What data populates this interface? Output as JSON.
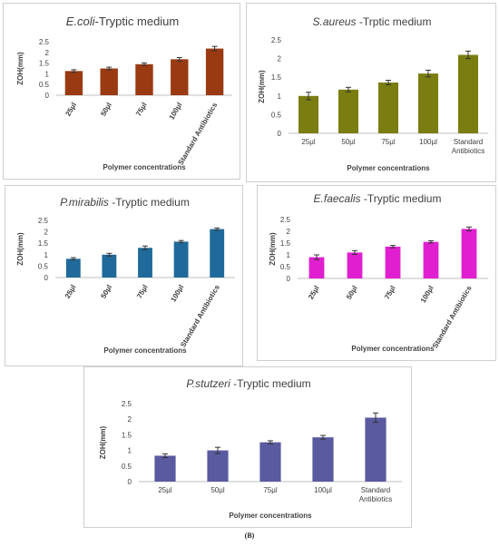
{
  "figure_label": "(B)",
  "chart_data": [
    {
      "type": "bar",
      "title_species": "E.coli",
      "title_rest": "-Tryptic medium",
      "categories": [
        "25µl",
        "50µl",
        "75µl",
        "100µl",
        "Standard Antibiotics"
      ],
      "values": [
        1.13,
        1.25,
        1.45,
        1.68,
        2.18
      ],
      "errors": [
        0.06,
        0.06,
        0.06,
        0.08,
        0.1
      ],
      "ylabel": "ZOH(mm)",
      "xlabel": "Polymer concentrations",
      "ylim": [
        0,
        2.5
      ],
      "yticks": [
        "0",
        "0.5",
        "1",
        "1.5",
        "2",
        "2.5"
      ],
      "color": "#9a3a12",
      "grid": false
    },
    {
      "type": "bar",
      "title_species": "S.aureus",
      "title_rest": " -Trptic medium",
      "categories": [
        "25µl",
        "50µl",
        "75µl",
        "100µl",
        "Standard Antibiotics"
      ],
      "values": [
        1.0,
        1.17,
        1.36,
        1.6,
        2.1
      ],
      "errors": [
        0.1,
        0.06,
        0.06,
        0.09,
        0.1
      ],
      "ylabel": "ZOH(mm)",
      "xlabel": "Polymer concentrations",
      "ylim": [
        0,
        2.5
      ],
      "yticks": [
        "0",
        "0.5",
        "1",
        "1.5",
        "2",
        "2.5"
      ],
      "color": "#7a7d10",
      "grid": false
    },
    {
      "type": "bar",
      "title_species": "P.mirabilis",
      "title_rest": " -Tryptic medium",
      "categories": [
        "25µl",
        "50µl",
        "75µl",
        "100µl",
        "Standard Antibiotics"
      ],
      "values": [
        0.82,
        1.0,
        1.3,
        1.57,
        2.12
      ],
      "errors": [
        0.05,
        0.06,
        0.08,
        0.05,
        0.05
      ],
      "ylabel": "ZOH(mm)",
      "xlabel": "Polymer concentrations",
      "ylim": [
        0,
        2.5
      ],
      "yticks": [
        "0",
        "0.5",
        "1",
        "1.5",
        "2",
        "2.5"
      ],
      "color": "#1f6a9a",
      "grid": false
    },
    {
      "type": "bar",
      "title_species": "E.faecalis",
      "title_rest": " -Tryptic medium",
      "categories": [
        "25µl",
        "50µl",
        "75µl",
        "100µl",
        "Standard Antibiotics"
      ],
      "values": [
        0.9,
        1.1,
        1.35,
        1.55,
        2.1
      ],
      "errors": [
        0.1,
        0.08,
        0.05,
        0.05,
        0.08
      ],
      "ylabel": "ZOH(mm)",
      "xlabel": "Polymer concentrations",
      "ylim": [
        0,
        2.5
      ],
      "yticks": [
        "0",
        "0.5",
        "1",
        "1.5",
        "2",
        "2.5"
      ],
      "color": "#e020d0",
      "grid": false
    },
    {
      "type": "bar",
      "title_species": "P.stutzeri",
      "title_rest": " -Tryptic medium",
      "categories": [
        "25µl",
        "50µl",
        "75µl",
        "100µl",
        "Standard Antibiotics"
      ],
      "values": [
        0.83,
        1.0,
        1.26,
        1.42,
        2.05
      ],
      "errors": [
        0.06,
        0.1,
        0.05,
        0.06,
        0.15
      ],
      "ylabel": "ZOH(mm)",
      "xlabel": "Polymer concentrations",
      "ylim": [
        0,
        2.5
      ],
      "yticks": [
        "0",
        "0.5",
        "1",
        "1.5",
        "2",
        "2.5"
      ],
      "color": "#5a5aa0",
      "grid": false
    }
  ]
}
